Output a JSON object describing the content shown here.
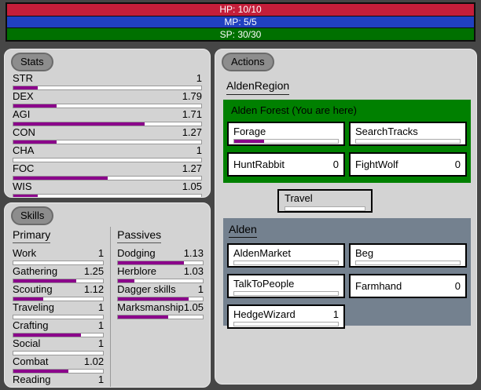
{
  "colors": {
    "page_bg": "#464646",
    "panel_bg": "#d3d3d3",
    "progress_fill": "#8b008b",
    "location_box_bg": "#008000",
    "town_box_bg": "#74818f",
    "hp_bar": "#c41e3a",
    "mp_bar": "#2040c0",
    "sp_bar": "#007000"
  },
  "status_bars": [
    {
      "label": "HP: 10/10",
      "color": "#c41e3a"
    },
    {
      "label": "MP: 5/5",
      "color": "#2040c0"
    },
    {
      "label": "SP: 30/30",
      "color": "#007000"
    }
  ],
  "stats": {
    "title": "Stats",
    "rows": [
      {
        "label": "STR",
        "value": "1",
        "pct": 13
      },
      {
        "label": "DEX",
        "value": "1.79",
        "pct": 23
      },
      {
        "label": "AGI",
        "value": "1.71",
        "pct": 70
      },
      {
        "label": "CON",
        "value": "1.27",
        "pct": 23
      },
      {
        "label": "CHA",
        "value": "1",
        "pct": 0
      },
      {
        "label": "FOC",
        "value": "1.27",
        "pct": 50
      },
      {
        "label": "WIS",
        "value": "1.05",
        "pct": 13
      }
    ]
  },
  "skills": {
    "title": "Skills",
    "primary": {
      "header": "Primary",
      "rows": [
        {
          "label": "Work",
          "value": "1",
          "pct": 0
        },
        {
          "label": "Gathering",
          "value": "1.25",
          "pct": 70
        },
        {
          "label": "Scouting",
          "value": "1.12",
          "pct": 33
        },
        {
          "label": "Traveling",
          "value": "1",
          "pct": 0
        },
        {
          "label": "Crafting",
          "value": "1",
          "pct": 75
        },
        {
          "label": "Social",
          "value": "1",
          "pct": 0
        },
        {
          "label": "Combat",
          "value": "1.02",
          "pct": 61
        },
        {
          "label": "Reading",
          "value": "1",
          "pct": 0
        }
      ]
    },
    "passives": {
      "header": "Passives",
      "rows": [
        {
          "label": "Dodging",
          "value": "1.13",
          "pct": 78
        },
        {
          "label": "Herblore",
          "value": "1.03",
          "pct": 19
        },
        {
          "label": "Dagger skills",
          "value": "1",
          "pct": 83
        },
        {
          "label": "Marksmanship",
          "value": "1.05",
          "pct": 59
        }
      ]
    }
  },
  "actions": {
    "title": "Actions",
    "region_header": "AldenRegion",
    "location_box": {
      "title": "Alden Forest (You are here)",
      "buttons": [
        {
          "label": "Forage",
          "count": "",
          "has_bar": true,
          "pct": 29
        },
        {
          "label": "SearchTracks",
          "count": "",
          "has_bar": true,
          "pct": 0
        },
        {
          "label": "HuntRabbit",
          "count": "0",
          "has_bar": false,
          "pct": 0
        },
        {
          "label": "FightWolf",
          "count": "0",
          "has_bar": false,
          "pct": 0
        }
      ]
    },
    "travel_button": {
      "label": "Travel",
      "pct": 0
    },
    "town_box": {
      "header": "Alden",
      "buttons": [
        {
          "label": "AldenMarket",
          "count": "",
          "has_bar": true,
          "pct": 0
        },
        {
          "label": "Beg",
          "count": "",
          "has_bar": true,
          "pct": 0
        },
        {
          "label": "TalkToPeople",
          "count": "",
          "has_bar": true,
          "pct": 0
        },
        {
          "label": "Farmhand",
          "count": "0",
          "has_bar": false,
          "pct": 0
        },
        {
          "label": "HedgeWizard",
          "count": "1",
          "has_bar": true,
          "pct": 0
        }
      ]
    }
  }
}
